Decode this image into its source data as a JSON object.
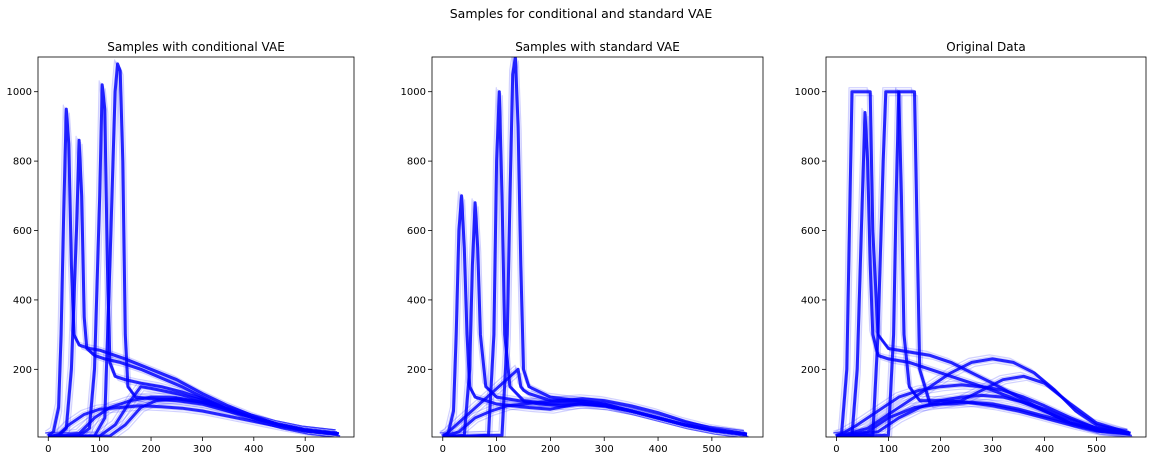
{
  "figure": {
    "suptitle": "Samples for conditional and standard VAE"
  },
  "colors": {
    "line": "#0000ff",
    "axes": "#000000",
    "background": "#ffffff"
  },
  "chart_data": [
    {
      "type": "line",
      "title": "Samples with conditional VAE",
      "xlabel": "",
      "ylabel": "",
      "xlim": [
        -20,
        595
      ],
      "ylim": [
        5,
        1100
      ],
      "xticks": [
        0,
        100,
        200,
        300,
        400,
        500
      ],
      "yticks": [
        200,
        400,
        600,
        800,
        1000
      ],
      "grid": false,
      "series": [
        {
          "x": [
            0,
            10,
            20,
            25,
            30,
            35,
            40,
            45,
            50,
            60,
            70,
            80,
            100,
            120,
            150,
            200,
            250,
            300,
            350,
            400,
            450,
            500,
            565
          ],
          "y": [
            10,
            20,
            90,
            300,
            650,
            950,
            850,
            500,
            300,
            270,
            265,
            260,
            255,
            245,
            230,
            200,
            170,
            130,
            95,
            65,
            40,
            25,
            14
          ]
        },
        {
          "x": [
            0,
            20,
            35,
            45,
            55,
            60,
            65,
            70,
            75,
            90,
            110,
            140,
            180,
            220,
            260,
            300,
            350,
            400,
            450,
            500,
            565
          ],
          "y": [
            5,
            8,
            30,
            200,
            600,
            860,
            700,
            350,
            260,
            240,
            230,
            220,
            200,
            175,
            150,
            120,
            85,
            60,
            40,
            25,
            14
          ]
        },
        {
          "x": [
            0,
            60,
            80,
            90,
            100,
            105,
            110,
            115,
            120,
            130,
            150,
            180,
            220,
            260,
            300,
            350,
            400,
            450,
            500,
            565
          ],
          "y": [
            5,
            8,
            30,
            200,
            700,
            1020,
            950,
            500,
            220,
            180,
            170,
            160,
            150,
            135,
            115,
            85,
            60,
            40,
            25,
            14
          ]
        },
        {
          "x": [
            0,
            90,
            110,
            120,
            130,
            135,
            140,
            145,
            150,
            155,
            170,
            200,
            250,
            300,
            350,
            400,
            450,
            500,
            565
          ],
          "y": [
            5,
            8,
            60,
            500,
            1000,
            1080,
            1060,
            800,
            300,
            150,
            120,
            115,
            110,
            100,
            80,
            60,
            40,
            25,
            14
          ]
        },
        {
          "x": [
            0,
            100,
            130,
            160,
            180,
            200,
            250,
            300,
            350,
            400,
            450,
            500,
            565
          ],
          "y": [
            5,
            8,
            40,
            110,
            150,
            145,
            130,
            110,
            85,
            60,
            40,
            25,
            14
          ]
        },
        {
          "x": [
            0,
            20,
            40,
            70,
            100,
            140,
            180,
            220,
            260,
            300,
            350,
            400,
            450,
            500,
            565
          ],
          "y": [
            5,
            12,
            40,
            70,
            85,
            90,
            95,
            92,
            88,
            80,
            65,
            50,
            35,
            22,
            13
          ]
        },
        {
          "x": [
            0,
            120,
            150,
            180,
            210,
            250,
            300,
            350,
            400,
            450,
            500,
            565
          ],
          "y": [
            5,
            8,
            40,
            90,
            110,
            115,
            105,
            85,
            60,
            40,
            25,
            14
          ]
        },
        {
          "x": [
            0,
            60,
            90,
            120,
            160,
            200,
            250,
            300,
            350,
            400,
            450,
            500,
            565
          ],
          "y": [
            5,
            15,
            60,
            90,
            110,
            120,
            118,
            105,
            85,
            60,
            40,
            25,
            14
          ]
        }
      ]
    },
    {
      "type": "line",
      "title": "Samples with standard VAE",
      "xlabel": "",
      "ylabel": "",
      "xlim": [
        -20,
        595
      ],
      "ylim": [
        5,
        1100
      ],
      "xticks": [
        0,
        100,
        200,
        300,
        400,
        500
      ],
      "yticks": [
        200,
        400,
        600,
        800,
        1000
      ],
      "grid": false,
      "series": [
        {
          "x": [
            0,
            10,
            20,
            25,
            30,
            35,
            40,
            45,
            50,
            60,
            80,
            100,
            130,
            160,
            200,
            250,
            300,
            350,
            400,
            450,
            500,
            565
          ],
          "y": [
            10,
            15,
            80,
            300,
            600,
            700,
            550,
            300,
            150,
            120,
            110,
            100,
            95,
            90,
            85,
            100,
            95,
            80,
            60,
            40,
            25,
            12
          ]
        },
        {
          "x": [
            0,
            40,
            50,
            55,
            60,
            65,
            70,
            80,
            100,
            140,
            180,
            220,
            260,
            300,
            350,
            400,
            450,
            500,
            565
          ],
          "y": [
            5,
            10,
            200,
            500,
            680,
            550,
            300,
            150,
            120,
            110,
            100,
            95,
            100,
            95,
            80,
            60,
            40,
            25,
            12
          ]
        },
        {
          "x": [
            0,
            85,
            95,
            100,
            105,
            110,
            115,
            125,
            150,
            200,
            250,
            300,
            350,
            400,
            450,
            500,
            565
          ],
          "y": [
            5,
            10,
            300,
            800,
            1000,
            700,
            300,
            150,
            110,
            100,
            105,
            95,
            80,
            60,
            40,
            25,
            12
          ]
        },
        {
          "x": [
            0,
            110,
            120,
            125,
            130,
            135,
            140,
            145,
            150,
            160,
            200,
            250,
            300,
            350,
            400,
            450,
            500,
            565
          ],
          "y": [
            5,
            10,
            300,
            700,
            1050,
            1100,
            900,
            500,
            200,
            150,
            120,
            110,
            100,
            80,
            60,
            40,
            25,
            12
          ]
        },
        {
          "x": [
            0,
            30,
            60,
            90,
            120,
            150,
            180,
            220,
            260,
            300,
            350,
            400,
            450,
            500,
            565
          ],
          "y": [
            5,
            20,
            60,
            80,
            95,
            100,
            105,
            110,
            115,
            110,
            95,
            75,
            50,
            30,
            14
          ]
        },
        {
          "x": [
            0,
            140,
            145,
            150,
            160,
            200,
            250,
            300,
            350,
            400,
            450,
            500,
            565
          ],
          "y": [
            5,
            200,
            150,
            140,
            130,
            110,
            110,
            100,
            80,
            60,
            40,
            25,
            12
          ]
        }
      ]
    },
    {
      "type": "line",
      "title": "Original Data",
      "xlabel": "",
      "ylabel": "",
      "xlim": [
        -20,
        595
      ],
      "ylim": [
        5,
        1100
      ],
      "xticks": [
        0,
        100,
        200,
        300,
        400,
        500
      ],
      "yticks": [
        200,
        400,
        600,
        800,
        1000
      ],
      "grid": false,
      "series": [
        {
          "x": [
            0,
            10,
            20,
            25,
            30,
            40,
            45,
            55,
            65,
            70,
            80,
            100,
            140,
            180,
            220,
            260,
            300,
            350,
            400,
            450,
            500,
            565
          ],
          "y": [
            10,
            15,
            200,
            600,
            1000,
            1000,
            1000,
            1000,
            1000,
            600,
            300,
            260,
            250,
            240,
            220,
            190,
            160,
            120,
            80,
            45,
            25,
            15
          ]
        },
        {
          "x": [
            0,
            30,
            40,
            50,
            55,
            60,
            65,
            70,
            80,
            100,
            140,
            180,
            220,
            260,
            300,
            350,
            400,
            450,
            500,
            565
          ],
          "y": [
            5,
            10,
            200,
            700,
            940,
            800,
            500,
            300,
            240,
            230,
            220,
            200,
            180,
            160,
            140,
            110,
            80,
            45,
            25,
            15
          ]
        },
        {
          "x": [
            0,
            70,
            80,
            90,
            95,
            100,
            110,
            120,
            125,
            130,
            140,
            160,
            200,
            250,
            300,
            350,
            400,
            450,
            500,
            565
          ],
          "y": [
            5,
            10,
            300,
            800,
            1000,
            1000,
            1000,
            1000,
            700,
            300,
            150,
            110,
            110,
            105,
            95,
            80,
            60,
            40,
            22,
            14
          ]
        },
        {
          "x": [
            0,
            100,
            110,
            115,
            120,
            130,
            140,
            150,
            155,
            160,
            180,
            220,
            260,
            300,
            350,
            400,
            450,
            500,
            565
          ],
          "y": [
            5,
            10,
            300,
            700,
            1000,
            1000,
            1000,
            1000,
            600,
            200,
            100,
            100,
            105,
            100,
            85,
            65,
            45,
            25,
            14
          ]
        },
        {
          "x": [
            0,
            40,
            80,
            120,
            160,
            200,
            240,
            280,
            320,
            360,
            400,
            450,
            500,
            565
          ],
          "y": [
            5,
            40,
            80,
            120,
            140,
            150,
            155,
            150,
            140,
            120,
            95,
            60,
            30,
            15
          ]
        },
        {
          "x": [
            0,
            60,
            100,
            140,
            180,
            220,
            260,
            300,
            340,
            380,
            420,
            460,
            500,
            565
          ],
          "y": [
            5,
            30,
            70,
            110,
            150,
            190,
            220,
            230,
            220,
            190,
            140,
            80,
            40,
            16
          ]
        },
        {
          "x": [
            0,
            80,
            120,
            160,
            200,
            240,
            280,
            320,
            360,
            400,
            450,
            500,
            565
          ],
          "y": [
            5,
            20,
            60,
            90,
            110,
            120,
            125,
            120,
            105,
            85,
            55,
            30,
            14
          ]
        },
        {
          "x": [
            0,
            60,
            100,
            150,
            200,
            240,
            280,
            320,
            360,
            400,
            450,
            500,
            565
          ],
          "y": [
            5,
            20,
            60,
            90,
            100,
            110,
            140,
            170,
            180,
            160,
            100,
            45,
            16
          ]
        }
      ]
    }
  ]
}
